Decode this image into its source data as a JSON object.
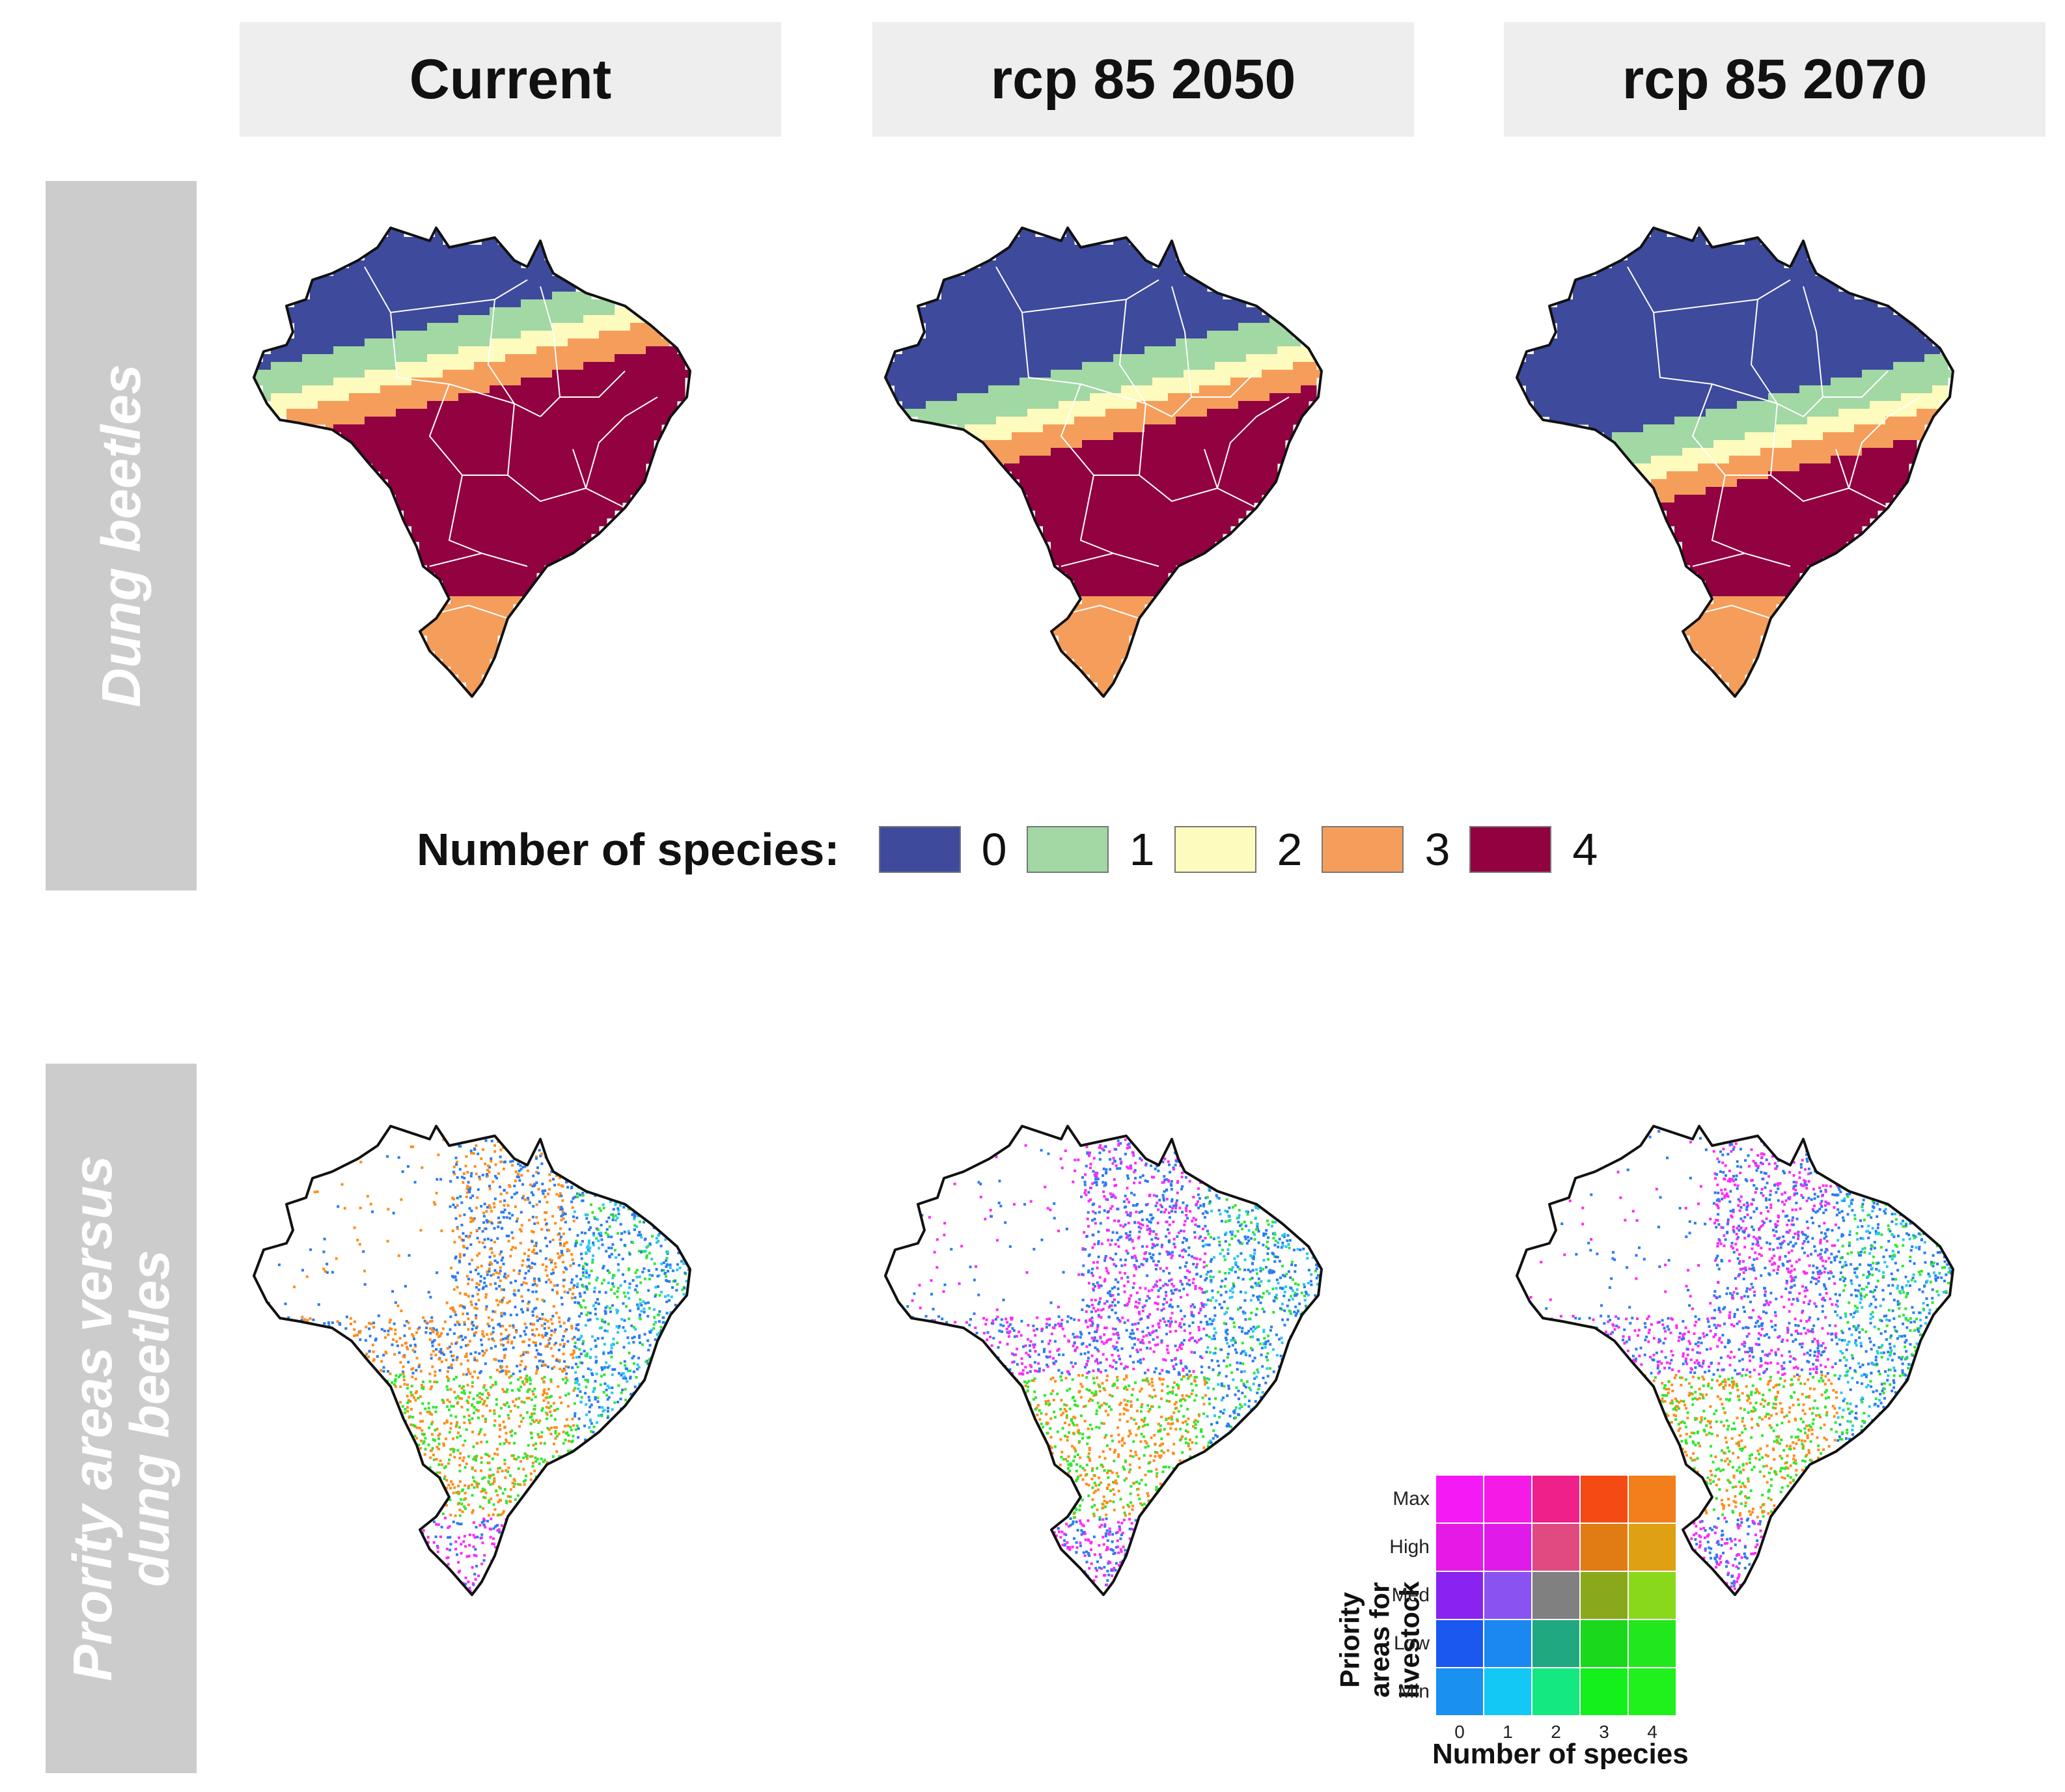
{
  "columns": [
    {
      "label": "Current"
    },
    {
      "label": "rcp 85 2050"
    },
    {
      "label": "rcp 85 2070"
    }
  ],
  "rows": [
    {
      "label": "Dung beetles"
    },
    {
      "label_line1": "Prority areas versus",
      "label_line2": "dung beetles"
    }
  ],
  "species_legend": {
    "title": "Number of species:",
    "items": [
      {
        "label": "0",
        "color": "#3e4a9c"
      },
      {
        "label": "1",
        "color": "#a1d8a4"
      },
      {
        "label": "2",
        "color": "#fdfbbd"
      },
      {
        "label": "3",
        "color": "#f59e5c"
      },
      {
        "label": "4",
        "color": "#920140"
      }
    ]
  },
  "bivariate_legend": {
    "y_title_line1": "Priority",
    "y_title_line2": "areas for livestock",
    "x_title": "Number of species",
    "y_labels": [
      "Max",
      "High",
      "Med",
      "Low",
      "Min"
    ],
    "x_labels": [
      "0",
      "1",
      "2",
      "3",
      "4"
    ],
    "colors": [
      [
        "#f51af5",
        "#f51ae6",
        "#f0208a",
        "#f54a14",
        "#f27e1c"
      ],
      [
        "#e61ae6",
        "#e01ae8",
        "#e04a80",
        "#e07c14",
        "#e0a014"
      ],
      [
        "#8a22f0",
        "#8a52f0",
        "#808080",
        "#8aa81c",
        "#8ad81c"
      ],
      [
        "#1a58f0",
        "#1a88f0",
        "#20a880",
        "#1ad81c",
        "#20e81c"
      ],
      [
        "#1a90f0",
        "#14c8f5",
        "#14e880",
        "#14f01c",
        "#20f01c"
      ]
    ]
  },
  "map_colors": {
    "outline": "#111111",
    "state_borders": "#ffffff",
    "dot_colors": [
      "#ff8c1a",
      "#2ee82e",
      "#ff2bf5",
      "#2a7cf0",
      "#28c8f2"
    ]
  }
}
